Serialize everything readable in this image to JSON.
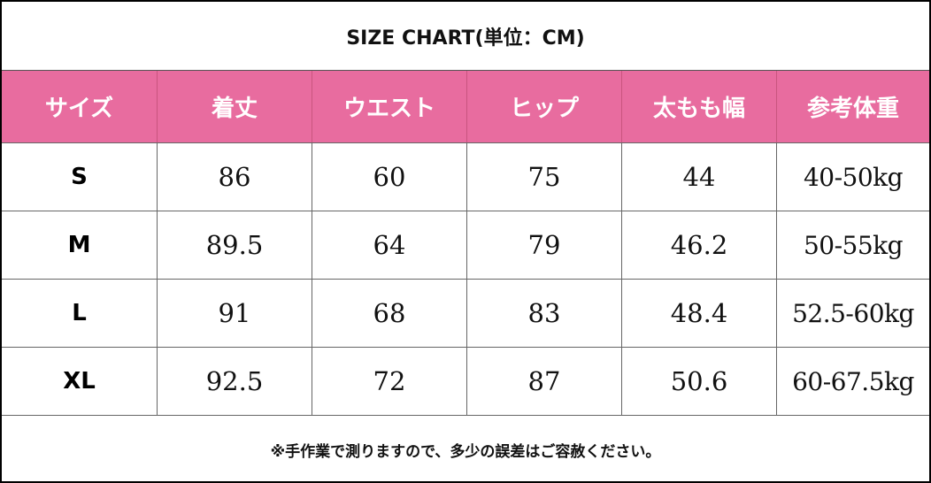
{
  "title": "SIZE CHART(単位：CM)",
  "headers": [
    "サイズ",
    "着丈",
    "ウエスト",
    "ヒップ",
    "太もも幅",
    "参考体重"
  ],
  "rows": [
    [
      "S",
      "86",
      "60",
      "75",
      "44",
      "40-50kg"
    ],
    [
      "M",
      "89.5",
      "64",
      "79",
      "46.2",
      "50-55kg"
    ],
    [
      "L",
      "91",
      "68",
      "83",
      "48.4",
      "52.5-60kg"
    ],
    [
      "XL",
      "92.5",
      "72",
      "87",
      "50.6",
      "60-67.5kg"
    ]
  ],
  "note": "※手作業で測りますので、多少の誤差はご容赦ください。",
  "colors": {
    "header_bg": "#e86c9f",
    "header_text": "#ffffff",
    "border": "#000000"
  }
}
